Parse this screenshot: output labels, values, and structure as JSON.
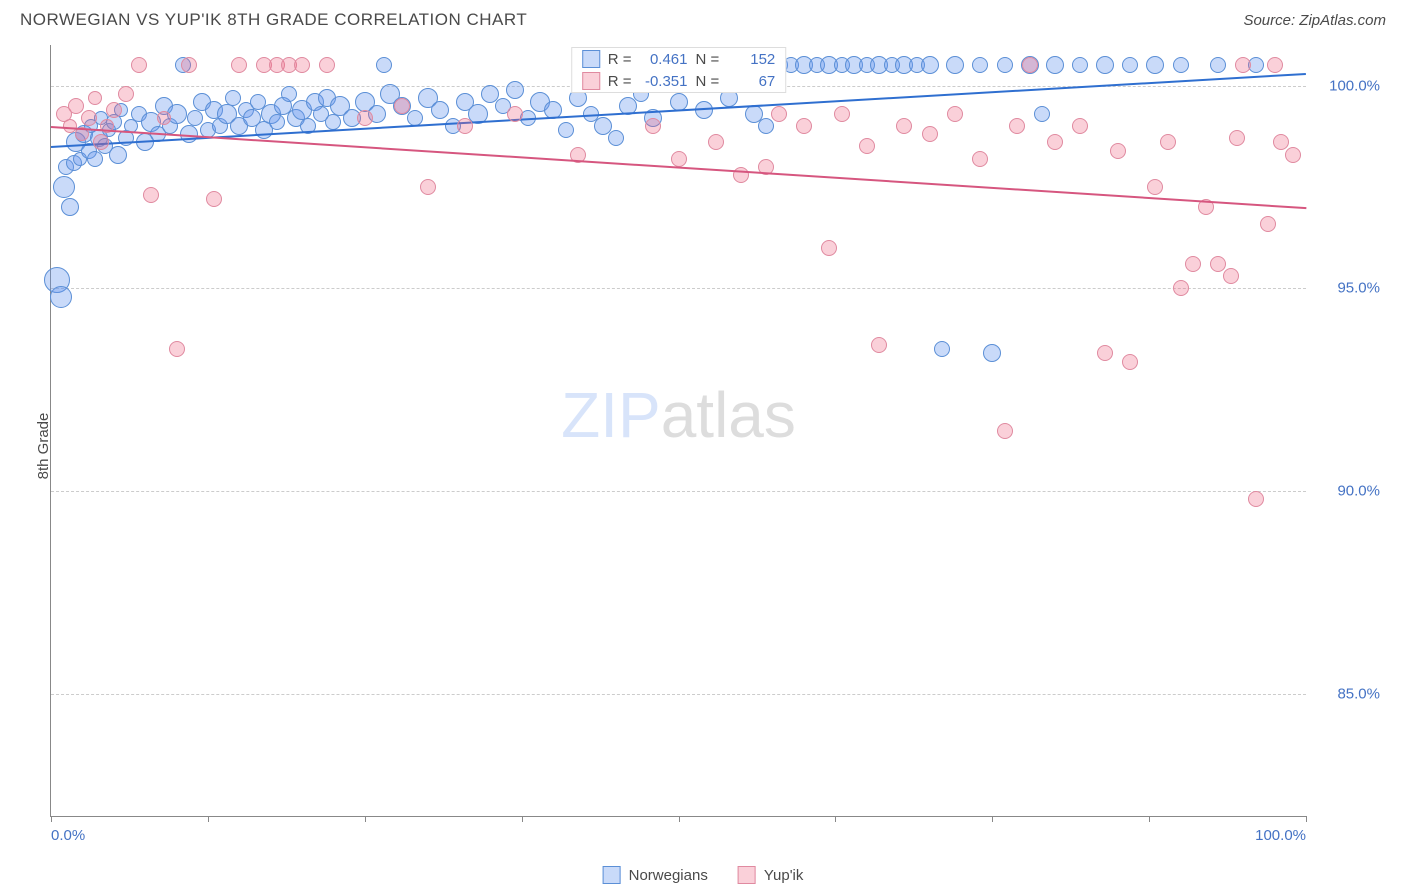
{
  "title": "NORWEGIAN VS YUP'IK 8TH GRADE CORRELATION CHART",
  "source": "Source: ZipAtlas.com",
  "watermark_zip": "ZIP",
  "watermark_atlas": "atlas",
  "y_axis_title": "8th Grade",
  "chart": {
    "type": "scatter",
    "xlim": [
      0,
      100
    ],
    "ylim": [
      82,
      101
    ],
    "x_tick_positions": [
      0,
      12.5,
      25,
      37.5,
      50,
      62.5,
      75,
      87.5,
      100
    ],
    "x_label_min": "0.0%",
    "x_label_max": "100.0%",
    "y_gridlines": [
      85,
      90,
      95,
      100
    ],
    "y_labels": [
      "85.0%",
      "90.0%",
      "95.0%",
      "100.0%"
    ],
    "background_color": "#ffffff",
    "grid_color": "#cccccc",
    "axis_color": "#888888",
    "label_color": "#4472c4",
    "series": [
      {
        "name": "Norwegians",
        "fill_color": "rgba(100,149,237,0.35)",
        "stroke_color": "#5b8fd6",
        "trend_color": "#2f6fd0",
        "marker_radius_range": [
          5,
          13
        ],
        "trend": {
          "x1": 0,
          "y1": 98.5,
          "x2": 100,
          "y2": 100.3
        },
        "legend_R_label": "R =",
        "legend_R": "0.461",
        "legend_N_label": "N =",
        "legend_N": "152",
        "points": [
          {
            "x": 0.5,
            "y": 95.2,
            "r": 13
          },
          {
            "x": 0.8,
            "y": 94.8,
            "r": 11
          },
          {
            "x": 1,
            "y": 97.5,
            "r": 11
          },
          {
            "x": 1.2,
            "y": 98.0,
            "r": 8
          },
          {
            "x": 1.5,
            "y": 97.0,
            "r": 9
          },
          {
            "x": 1.8,
            "y": 98.1,
            "r": 8
          },
          {
            "x": 2,
            "y": 98.6,
            "r": 10
          },
          {
            "x": 2.3,
            "y": 98.2,
            "r": 7
          },
          {
            "x": 2.6,
            "y": 98.8,
            "r": 9
          },
          {
            "x": 3,
            "y": 98.4,
            "r": 8
          },
          {
            "x": 3.2,
            "y": 99.0,
            "r": 7
          },
          {
            "x": 3.5,
            "y": 98.2,
            "r": 8
          },
          {
            "x": 3.8,
            "y": 98.7,
            "r": 9
          },
          {
            "x": 4,
            "y": 99.2,
            "r": 7
          },
          {
            "x": 4.3,
            "y": 98.5,
            "r": 8
          },
          {
            "x": 4.6,
            "y": 98.9,
            "r": 7
          },
          {
            "x": 5,
            "y": 99.1,
            "r": 8
          },
          {
            "x": 5.3,
            "y": 98.3,
            "r": 9
          },
          {
            "x": 5.6,
            "y": 99.4,
            "r": 7
          },
          {
            "x": 6,
            "y": 98.7,
            "r": 8
          },
          {
            "x": 6.4,
            "y": 99.0,
            "r": 7
          },
          {
            "x": 7,
            "y": 99.3,
            "r": 8
          },
          {
            "x": 7.5,
            "y": 98.6,
            "r": 9
          },
          {
            "x": 8,
            "y": 99.1,
            "r": 10
          },
          {
            "x": 8.5,
            "y": 98.8,
            "r": 8
          },
          {
            "x": 9,
            "y": 99.5,
            "r": 9
          },
          {
            "x": 9.5,
            "y": 99.0,
            "r": 8
          },
          {
            "x": 10,
            "y": 99.3,
            "r": 10
          },
          {
            "x": 10.5,
            "y": 100.5,
            "r": 8
          },
          {
            "x": 11,
            "y": 98.8,
            "r": 9
          },
          {
            "x": 11.5,
            "y": 99.2,
            "r": 8
          },
          {
            "x": 12,
            "y": 99.6,
            "r": 9
          },
          {
            "x": 12.5,
            "y": 98.9,
            "r": 8
          },
          {
            "x": 13,
            "y": 99.4,
            "r": 9
          },
          {
            "x": 13.5,
            "y": 99.0,
            "r": 8
          },
          {
            "x": 14,
            "y": 99.3,
            "r": 10
          },
          {
            "x": 14.5,
            "y": 99.7,
            "r": 8
          },
          {
            "x": 15,
            "y": 99.0,
            "r": 9
          },
          {
            "x": 15.5,
            "y": 99.4,
            "r": 8
          },
          {
            "x": 16,
            "y": 99.2,
            "r": 9
          },
          {
            "x": 16.5,
            "y": 99.6,
            "r": 8
          },
          {
            "x": 17,
            "y": 98.9,
            "r": 9
          },
          {
            "x": 17.5,
            "y": 99.3,
            "r": 10
          },
          {
            "x": 18,
            "y": 99.1,
            "r": 8
          },
          {
            "x": 18.5,
            "y": 99.5,
            "r": 9
          },
          {
            "x": 19,
            "y": 99.8,
            "r": 8
          },
          {
            "x": 19.5,
            "y": 99.2,
            "r": 9
          },
          {
            "x": 20,
            "y": 99.4,
            "r": 10
          },
          {
            "x": 20.5,
            "y": 99.0,
            "r": 8
          },
          {
            "x": 21,
            "y": 99.6,
            "r": 9
          },
          {
            "x": 21.5,
            "y": 99.3,
            "r": 8
          },
          {
            "x": 22,
            "y": 99.7,
            "r": 9
          },
          {
            "x": 22.5,
            "y": 99.1,
            "r": 8
          },
          {
            "x": 23,
            "y": 99.5,
            "r": 10
          },
          {
            "x": 24,
            "y": 99.2,
            "r": 9
          },
          {
            "x": 25,
            "y": 99.6,
            "r": 10
          },
          {
            "x": 26,
            "y": 99.3,
            "r": 9
          },
          {
            "x": 26.5,
            "y": 100.5,
            "r": 8
          },
          {
            "x": 27,
            "y": 99.8,
            "r": 10
          },
          {
            "x": 28,
            "y": 99.5,
            "r": 9
          },
          {
            "x": 29,
            "y": 99.2,
            "r": 8
          },
          {
            "x": 30,
            "y": 99.7,
            "r": 10
          },
          {
            "x": 31,
            "y": 99.4,
            "r": 9
          },
          {
            "x": 32,
            "y": 99.0,
            "r": 8
          },
          {
            "x": 33,
            "y": 99.6,
            "r": 9
          },
          {
            "x": 34,
            "y": 99.3,
            "r": 10
          },
          {
            "x": 35,
            "y": 99.8,
            "r": 9
          },
          {
            "x": 36,
            "y": 99.5,
            "r": 8
          },
          {
            "x": 37,
            "y": 99.9,
            "r": 9
          },
          {
            "x": 38,
            "y": 99.2,
            "r": 8
          },
          {
            "x": 39,
            "y": 99.6,
            "r": 10
          },
          {
            "x": 40,
            "y": 99.4,
            "r": 9
          },
          {
            "x": 41,
            "y": 98.9,
            "r": 8
          },
          {
            "x": 42,
            "y": 99.7,
            "r": 9
          },
          {
            "x": 43,
            "y": 99.3,
            "r": 8
          },
          {
            "x": 44,
            "y": 99.0,
            "r": 9
          },
          {
            "x": 45,
            "y": 98.7,
            "r": 8
          },
          {
            "x": 46,
            "y": 99.5,
            "r": 9
          },
          {
            "x": 47,
            "y": 99.8,
            "r": 8
          },
          {
            "x": 48,
            "y": 99.2,
            "r": 9
          },
          {
            "x": 49,
            "y": 100.5,
            "r": 8
          },
          {
            "x": 50,
            "y": 99.6,
            "r": 9
          },
          {
            "x": 51,
            "y": 100.5,
            "r": 8
          },
          {
            "x": 52,
            "y": 99.4,
            "r": 9
          },
          {
            "x": 53,
            "y": 100.5,
            "r": 8
          },
          {
            "x": 54,
            "y": 99.7,
            "r": 9
          },
          {
            "x": 55,
            "y": 100.5,
            "r": 8
          },
          {
            "x": 56,
            "y": 99.3,
            "r": 9
          },
          {
            "x": 57,
            "y": 99.0,
            "r": 8
          },
          {
            "x": 58,
            "y": 100.5,
            "r": 9
          },
          {
            "x": 59,
            "y": 100.5,
            "r": 8
          },
          {
            "x": 60,
            "y": 100.5,
            "r": 9
          },
          {
            "x": 61,
            "y": 100.5,
            "r": 8
          },
          {
            "x": 62,
            "y": 100.5,
            "r": 9
          },
          {
            "x": 63,
            "y": 100.5,
            "r": 8
          },
          {
            "x": 64,
            "y": 100.5,
            "r": 9
          },
          {
            "x": 65,
            "y": 100.5,
            "r": 8
          },
          {
            "x": 66,
            "y": 100.5,
            "r": 9
          },
          {
            "x": 67,
            "y": 100.5,
            "r": 8
          },
          {
            "x": 68,
            "y": 100.5,
            "r": 9
          },
          {
            "x": 69,
            "y": 100.5,
            "r": 8
          },
          {
            "x": 70,
            "y": 100.5,
            "r": 9
          },
          {
            "x": 71,
            "y": 93.5,
            "r": 8
          },
          {
            "x": 72,
            "y": 100.5,
            "r": 9
          },
          {
            "x": 74,
            "y": 100.5,
            "r": 8
          },
          {
            "x": 75,
            "y": 93.4,
            "r": 9
          },
          {
            "x": 76,
            "y": 100.5,
            "r": 8
          },
          {
            "x": 78,
            "y": 100.5,
            "r": 9
          },
          {
            "x": 79,
            "y": 99.3,
            "r": 8
          },
          {
            "x": 80,
            "y": 100.5,
            "r": 9
          },
          {
            "x": 82,
            "y": 100.5,
            "r": 8
          },
          {
            "x": 84,
            "y": 100.5,
            "r": 9
          },
          {
            "x": 86,
            "y": 100.5,
            "r": 8
          },
          {
            "x": 88,
            "y": 100.5,
            "r": 9
          },
          {
            "x": 90,
            "y": 100.5,
            "r": 8
          },
          {
            "x": 93,
            "y": 100.5,
            "r": 8
          },
          {
            "x": 96,
            "y": 100.5,
            "r": 8
          }
        ]
      },
      {
        "name": "Yup'ik",
        "fill_color": "rgba(237,100,130,0.3)",
        "stroke_color": "#e08aa0",
        "trend_color": "#d6567f",
        "marker_radius_range": [
          6,
          10
        ],
        "trend": {
          "x1": 0,
          "y1": 99.0,
          "x2": 100,
          "y2": 97.0
        },
        "legend_R_label": "R =",
        "legend_R": "-0.351",
        "legend_N_label": "N =",
        "legend_N": "67",
        "points": [
          {
            "x": 1,
            "y": 99.3,
            "r": 8
          },
          {
            "x": 1.5,
            "y": 99.0,
            "r": 7
          },
          {
            "x": 2,
            "y": 99.5,
            "r": 8
          },
          {
            "x": 2.5,
            "y": 98.8,
            "r": 7
          },
          {
            "x": 3,
            "y": 99.2,
            "r": 8
          },
          {
            "x": 3.5,
            "y": 99.7,
            "r": 7
          },
          {
            "x": 4,
            "y": 98.6,
            "r": 8
          },
          {
            "x": 4.5,
            "y": 99.0,
            "r": 7
          },
          {
            "x": 5,
            "y": 99.4,
            "r": 8
          },
          {
            "x": 6,
            "y": 99.8,
            "r": 8
          },
          {
            "x": 7,
            "y": 100.5,
            "r": 8
          },
          {
            "x": 8,
            "y": 97.3,
            "r": 8
          },
          {
            "x": 9,
            "y": 99.2,
            "r": 7
          },
          {
            "x": 10,
            "y": 93.5,
            "r": 8
          },
          {
            "x": 11,
            "y": 100.5,
            "r": 8
          },
          {
            "x": 13,
            "y": 97.2,
            "r": 8
          },
          {
            "x": 15,
            "y": 100.5,
            "r": 8
          },
          {
            "x": 17,
            "y": 100.5,
            "r": 8
          },
          {
            "x": 18,
            "y": 100.5,
            "r": 8
          },
          {
            "x": 19,
            "y": 100.5,
            "r": 8
          },
          {
            "x": 20,
            "y": 100.5,
            "r": 8
          },
          {
            "x": 22,
            "y": 100.5,
            "r": 8
          },
          {
            "x": 25,
            "y": 99.2,
            "r": 8
          },
          {
            "x": 28,
            "y": 99.5,
            "r": 8
          },
          {
            "x": 30,
            "y": 97.5,
            "r": 8
          },
          {
            "x": 33,
            "y": 99.0,
            "r": 8
          },
          {
            "x": 37,
            "y": 99.3,
            "r": 8
          },
          {
            "x": 42,
            "y": 98.3,
            "r": 8
          },
          {
            "x": 48,
            "y": 99.0,
            "r": 8
          },
          {
            "x": 50,
            "y": 98.2,
            "r": 8
          },
          {
            "x": 53,
            "y": 98.6,
            "r": 8
          },
          {
            "x": 55,
            "y": 97.8,
            "r": 8
          },
          {
            "x": 57,
            "y": 98.0,
            "r": 8
          },
          {
            "x": 58,
            "y": 99.3,
            "r": 8
          },
          {
            "x": 60,
            "y": 99.0,
            "r": 8
          },
          {
            "x": 62,
            "y": 96.0,
            "r": 8
          },
          {
            "x": 63,
            "y": 99.3,
            "r": 8
          },
          {
            "x": 65,
            "y": 98.5,
            "r": 8
          },
          {
            "x": 66,
            "y": 93.6,
            "r": 8
          },
          {
            "x": 68,
            "y": 99.0,
            "r": 8
          },
          {
            "x": 70,
            "y": 98.8,
            "r": 8
          },
          {
            "x": 72,
            "y": 99.3,
            "r": 8
          },
          {
            "x": 74,
            "y": 98.2,
            "r": 8
          },
          {
            "x": 76,
            "y": 91.5,
            "r": 8
          },
          {
            "x": 77,
            "y": 99.0,
            "r": 8
          },
          {
            "x": 78,
            "y": 100.5,
            "r": 8
          },
          {
            "x": 80,
            "y": 98.6,
            "r": 8
          },
          {
            "x": 82,
            "y": 99.0,
            "r": 8
          },
          {
            "x": 84,
            "y": 93.4,
            "r": 8
          },
          {
            "x": 85,
            "y": 98.4,
            "r": 8
          },
          {
            "x": 86,
            "y": 93.2,
            "r": 8
          },
          {
            "x": 88,
            "y": 97.5,
            "r": 8
          },
          {
            "x": 89,
            "y": 98.6,
            "r": 8
          },
          {
            "x": 90,
            "y": 95.0,
            "r": 8
          },
          {
            "x": 91,
            "y": 95.6,
            "r": 8
          },
          {
            "x": 92,
            "y": 97.0,
            "r": 8
          },
          {
            "x": 93,
            "y": 95.6,
            "r": 8
          },
          {
            "x": 94,
            "y": 95.3,
            "r": 8
          },
          {
            "x": 94.5,
            "y": 98.7,
            "r": 8
          },
          {
            "x": 95,
            "y": 100.5,
            "r": 8
          },
          {
            "x": 96,
            "y": 89.8,
            "r": 8
          },
          {
            "x": 97,
            "y": 96.6,
            "r": 8
          },
          {
            "x": 97.5,
            "y": 100.5,
            "r": 8
          },
          {
            "x": 98,
            "y": 98.6,
            "r": 8
          },
          {
            "x": 99,
            "y": 98.3,
            "r": 8
          }
        ]
      }
    ]
  },
  "bottom_legend": [
    {
      "label": "Norwegians",
      "fill": "rgba(100,149,237,0.35)",
      "stroke": "#5b8fd6"
    },
    {
      "label": "Yup'ik",
      "fill": "rgba(237,100,130,0.3)",
      "stroke": "#e08aa0"
    }
  ]
}
